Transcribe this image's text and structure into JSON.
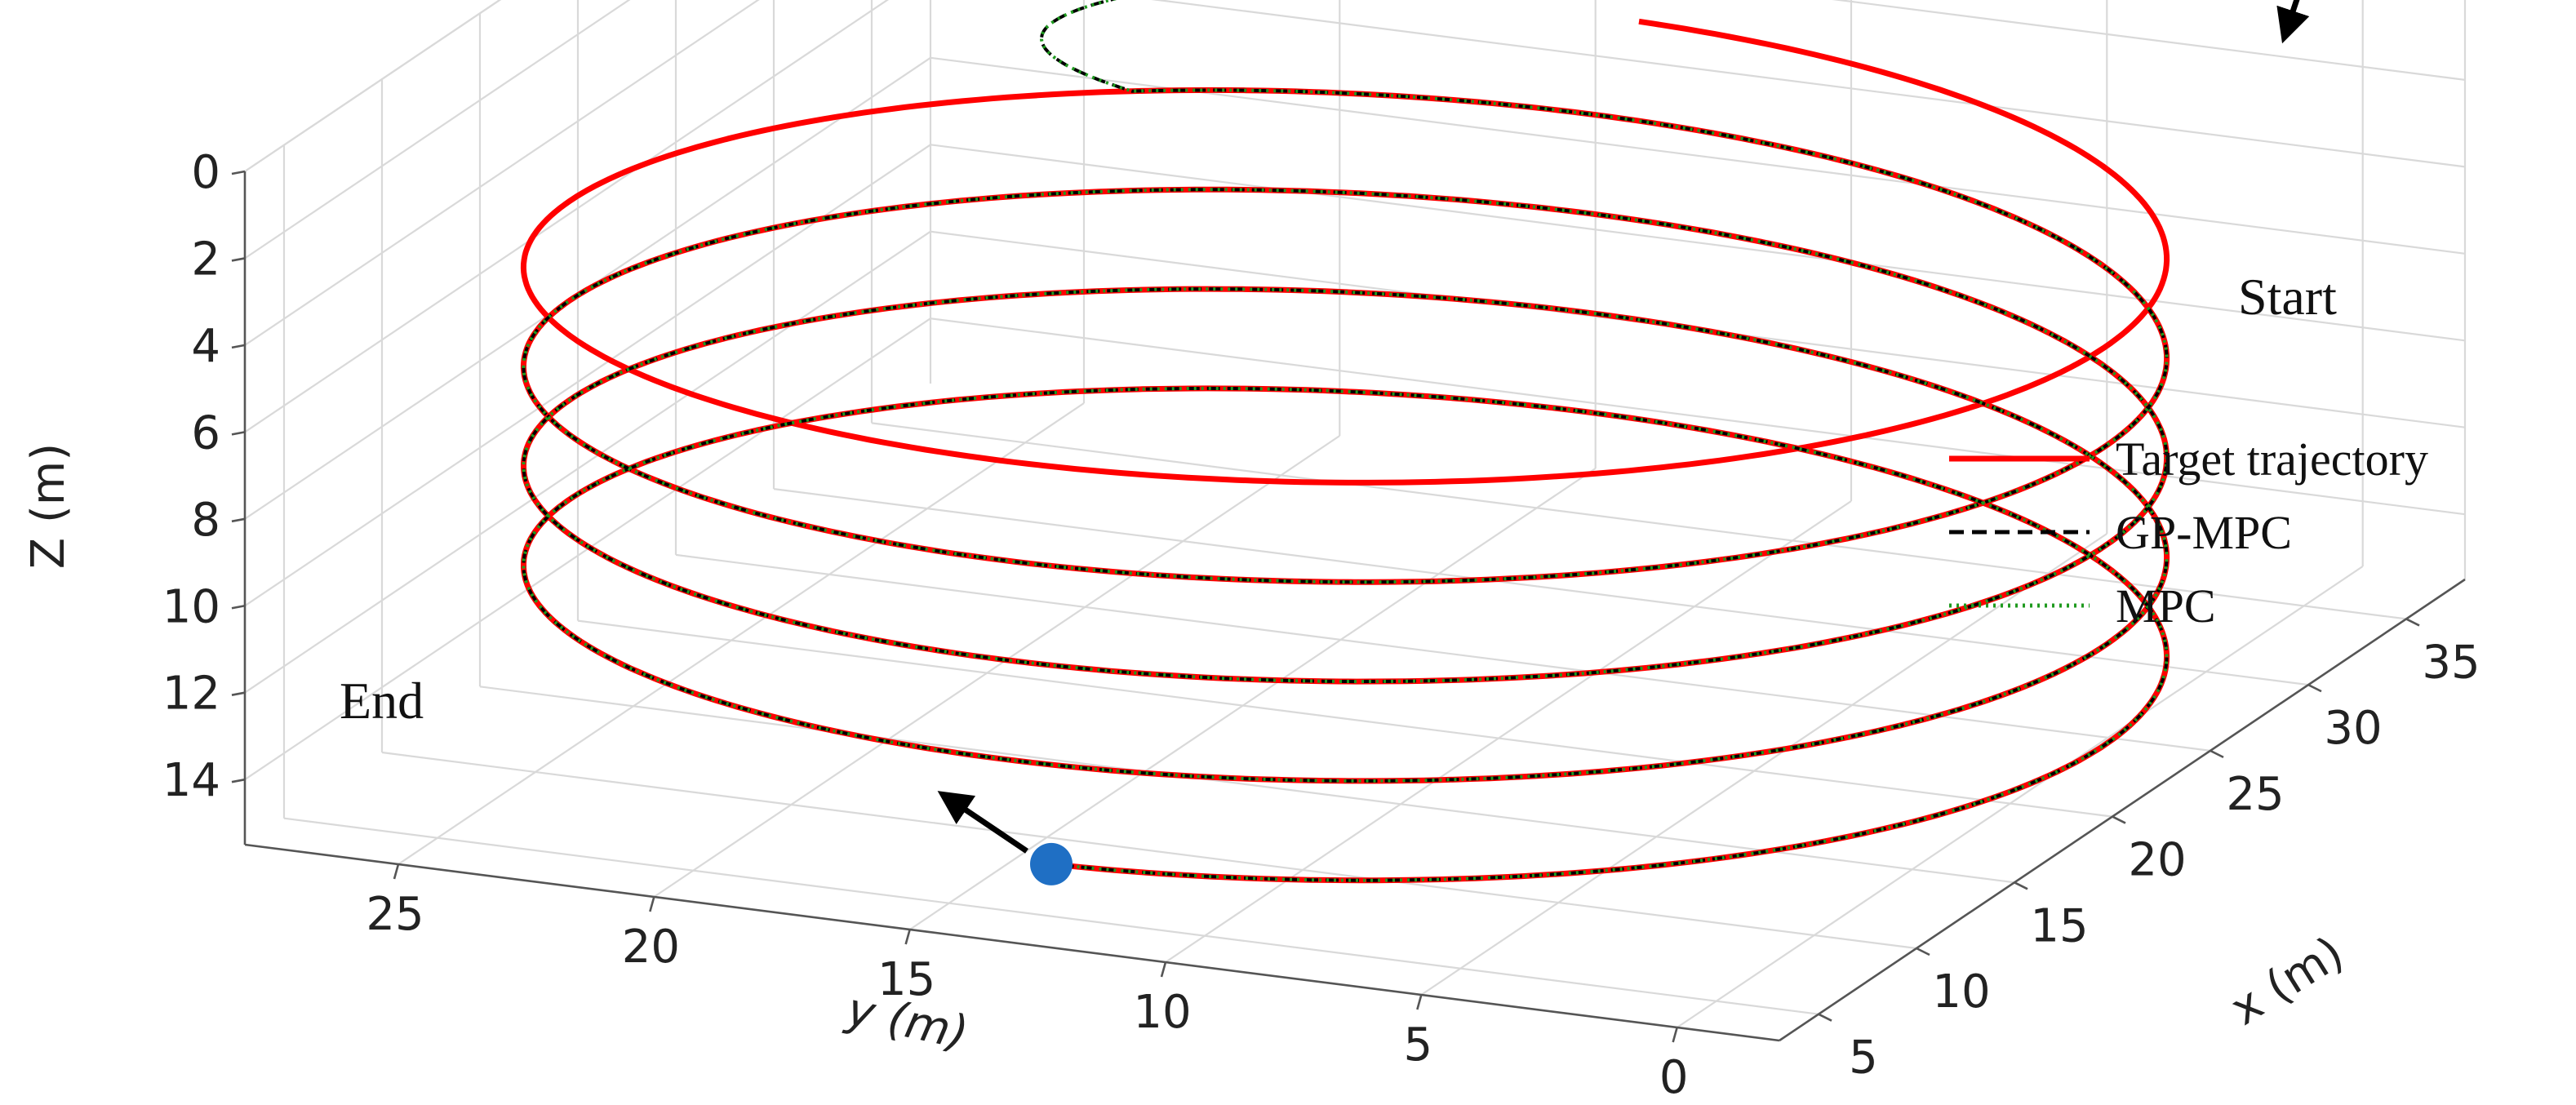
{
  "chart_data": {
    "type": "line",
    "dimensions": "3d",
    "xlabel": "x (m)",
    "ylabel": "y (m)",
    "zlabel": "Z (m)",
    "x_ticks": [
      5,
      10,
      15,
      20,
      25,
      30,
      35
    ],
    "y_ticks": [
      25,
      20,
      15,
      10,
      5,
      0
    ],
    "z_ticks": [
      0,
      2,
      4,
      6,
      8,
      10,
      12,
      14
    ],
    "xlim": [
      3,
      38
    ],
    "ylim": [
      -2,
      28
    ],
    "zlim": [
      0,
      15.5
    ],
    "z_inverted": true,
    "grid": true,
    "legend_position": "right",
    "series": [
      {
        "name": "Target trajectory",
        "color": "#ff0000",
        "style": "solid",
        "shape": "helix",
        "center": {
          "x": 20,
          "y": 13
        },
        "radius": 15,
        "z_start": 4,
        "z_end": 14.3,
        "turns": 4.5
      },
      {
        "name": "GP-MPC",
        "color": "#000000",
        "style": "dashed",
        "start": {
          "x": 36,
          "y": 0,
          "z": 0
        },
        "follows": "Target trajectory"
      },
      {
        "name": "MPC",
        "color": "#1f9a1f",
        "style": "dotted",
        "start": {
          "x": 36,
          "y": 0,
          "z": 0
        },
        "follows": "Target trajectory"
      }
    ],
    "annotations": [
      {
        "text": "Start",
        "marker_color": "#ff0000"
      },
      {
        "text": "End",
        "marker_color": "#1f6fc4"
      }
    ]
  }
}
